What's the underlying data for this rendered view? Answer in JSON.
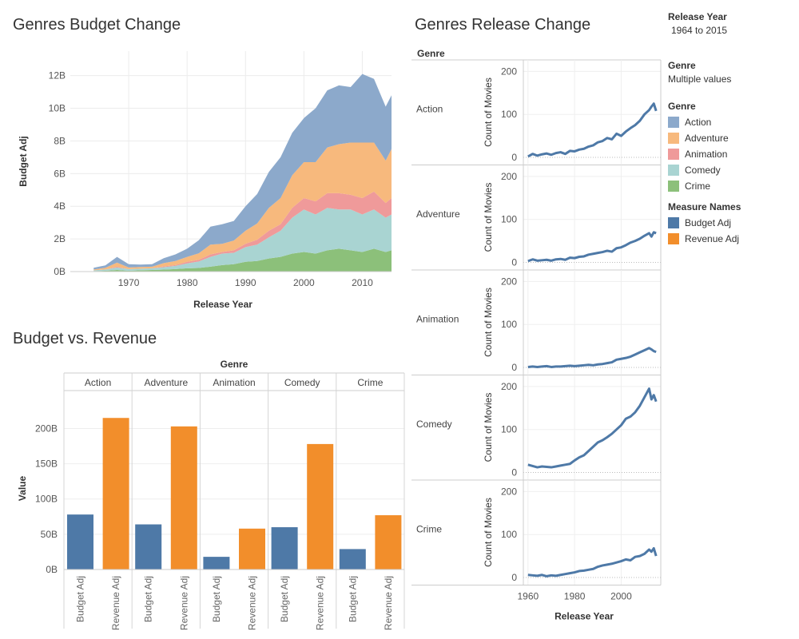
{
  "chart_data": [
    {
      "type": "area",
      "title": "Genres Budget Change",
      "xlabel": "Release Year",
      "ylabel": "Budget Adj",
      "xlim": [
        1960,
        2015
      ],
      "ylim": [
        0,
        13.5
      ],
      "x_ticks": [
        "1970",
        "1980",
        "1990",
        "2000",
        "2010"
      ],
      "y_ticks": [
        "0B",
        "2B",
        "4B",
        "6B",
        "8B",
        "10B",
        "12B"
      ],
      "stacked": true,
      "x": [
        1964,
        1966,
        1968,
        1970,
        1972,
        1974,
        1976,
        1978,
        1980,
        1982,
        1984,
        1986,
        1988,
        1990,
        1992,
        1994,
        1996,
        1998,
        2000,
        2002,
        2004,
        2006,
        2008,
        2010,
        2012,
        2014,
        2015
      ],
      "series": [
        {
          "name": "Crime",
          "color": "#8cc07a",
          "values": [
            0.03,
            0.05,
            0.1,
            0.05,
            0.08,
            0.1,
            0.12,
            0.15,
            0.2,
            0.22,
            0.3,
            0.4,
            0.45,
            0.6,
            0.65,
            0.8,
            0.9,
            1.1,
            1.2,
            1.1,
            1.3,
            1.4,
            1.3,
            1.2,
            1.4,
            1.2,
            1.3
          ]
        },
        {
          "name": "Comedy",
          "color": "#a9d4d2",
          "values": [
            0.05,
            0.08,
            0.15,
            0.1,
            0.1,
            0.1,
            0.15,
            0.2,
            0.3,
            0.4,
            0.6,
            0.7,
            0.7,
            0.9,
            1.0,
            1.3,
            1.6,
            2.2,
            2.6,
            2.4,
            2.6,
            2.4,
            2.5,
            2.3,
            2.4,
            2.1,
            2.2
          ]
        },
        {
          "name": "Animation",
          "color": "#ef9a9a",
          "values": [
            0.0,
            0.0,
            0.05,
            0.0,
            0.0,
            0.0,
            0.05,
            0.05,
            0.1,
            0.1,
            0.15,
            0.1,
            0.15,
            0.2,
            0.3,
            0.4,
            0.4,
            0.6,
            0.7,
            0.8,
            0.9,
            1.0,
            0.9,
            1.0,
            1.1,
            0.9,
            1.0
          ]
        },
        {
          "name": "Adventure",
          "color": "#f7b97d",
          "values": [
            0.05,
            0.1,
            0.25,
            0.1,
            0.1,
            0.1,
            0.2,
            0.25,
            0.3,
            0.4,
            0.6,
            0.5,
            0.6,
            0.8,
            1.0,
            1.4,
            1.6,
            2.0,
            2.2,
            2.4,
            2.8,
            3.0,
            3.2,
            3.4,
            3.0,
            2.6,
            3.0
          ]
        },
        {
          "name": "Action",
          "color": "#8ca9cb",
          "values": [
            0.1,
            0.15,
            0.35,
            0.2,
            0.15,
            0.15,
            0.3,
            0.4,
            0.5,
            0.8,
            1.1,
            1.2,
            1.2,
            1.5,
            1.8,
            2.2,
            2.5,
            2.6,
            2.7,
            3.3,
            3.5,
            3.6,
            3.4,
            4.2,
            3.9,
            3.3,
            3.3
          ]
        }
      ]
    },
    {
      "type": "bar",
      "title": "Budget vs. Revenue",
      "group_label": "Genre",
      "ylabel": "Value",
      "ylim": [
        0,
        230
      ],
      "y_ticks": [
        "0B",
        "50B",
        "100B",
        "150B",
        "200B"
      ],
      "categories": [
        "Action",
        "Adventure",
        "Animation",
        "Comedy",
        "Crime"
      ],
      "measures": [
        "Budget Adj",
        "Revenue Adj"
      ],
      "series": [
        {
          "name": "Budget Adj",
          "color": "#4e79a7",
          "values": [
            78,
            64,
            18,
            60,
            29
          ]
        },
        {
          "name": "Revenue Adj",
          "color": "#f28e2b",
          "values": [
            215,
            203,
            58,
            178,
            77
          ]
        }
      ]
    },
    {
      "type": "line",
      "title": "Genres Release Change",
      "row_header": "Genre",
      "xlabel": "Release Year",
      "ylabel": "Count of Movies",
      "xlim": [
        1958,
        2017
      ],
      "ylim": [
        0,
        210
      ],
      "x_ticks": [
        "1960",
        "1980",
        "2000"
      ],
      "y_ticks": [
        "0",
        "100",
        "200"
      ],
      "line_color": "#4e79a7",
      "x": [
        1960,
        1962,
        1964,
        1966,
        1968,
        1970,
        1972,
        1974,
        1976,
        1978,
        1980,
        1982,
        1984,
        1986,
        1988,
        1990,
        1992,
        1994,
        1996,
        1998,
        2000,
        2002,
        2004,
        2006,
        2008,
        2010,
        2012,
        2013,
        2014,
        2015
      ],
      "panels": [
        {
          "genre": "Action",
          "values": [
            2,
            8,
            4,
            7,
            9,
            6,
            10,
            12,
            8,
            15,
            14,
            18,
            20,
            25,
            28,
            35,
            38,
            45,
            42,
            55,
            50,
            60,
            68,
            75,
            85,
            100,
            110,
            118,
            125,
            108
          ]
        },
        {
          "genre": "Adventure",
          "values": [
            3,
            7,
            4,
            5,
            6,
            4,
            7,
            8,
            6,
            11,
            10,
            13,
            14,
            18,
            20,
            22,
            24,
            27,
            25,
            33,
            35,
            40,
            46,
            50,
            55,
            62,
            68,
            60,
            70,
            68
          ]
        },
        {
          "genre": "Animation",
          "values": [
            1,
            2,
            1,
            2,
            3,
            1,
            2,
            2,
            3,
            4,
            3,
            4,
            5,
            6,
            5,
            7,
            8,
            10,
            12,
            18,
            20,
            22,
            25,
            30,
            35,
            40,
            45,
            42,
            38,
            36
          ]
        },
        {
          "genre": "Comedy",
          "values": [
            18,
            15,
            12,
            14,
            13,
            12,
            14,
            16,
            18,
            20,
            28,
            35,
            40,
            50,
            60,
            70,
            75,
            82,
            90,
            100,
            110,
            125,
            130,
            140,
            155,
            175,
            195,
            170,
            180,
            165
          ]
        },
        {
          "genre": "Crime",
          "values": [
            6,
            5,
            4,
            6,
            3,
            5,
            4,
            6,
            8,
            10,
            12,
            15,
            16,
            18,
            20,
            25,
            28,
            30,
            32,
            35,
            38,
            42,
            40,
            48,
            50,
            55,
            65,
            60,
            68,
            50
          ]
        }
      ]
    }
  ],
  "filters": {
    "release_year_label": "Release Year",
    "release_year_value": "1964 to 2015",
    "genre_label": "Genre",
    "genre_value": "Multiple values"
  },
  "legends": {
    "genre_title": "Genre",
    "genre_items": [
      {
        "label": "Action",
        "color": "#8ca9cb"
      },
      {
        "label": "Adventure",
        "color": "#f7b97d"
      },
      {
        "label": "Animation",
        "color": "#ef9a9a"
      },
      {
        "label": "Comedy",
        "color": "#a9d4d2"
      },
      {
        "label": "Crime",
        "color": "#8cc07a"
      }
    ],
    "measure_title": "Measure Names",
    "measure_items": [
      {
        "label": "Budget Adj",
        "color": "#4e79a7"
      },
      {
        "label": "Revenue Adj",
        "color": "#f28e2b"
      }
    ]
  }
}
